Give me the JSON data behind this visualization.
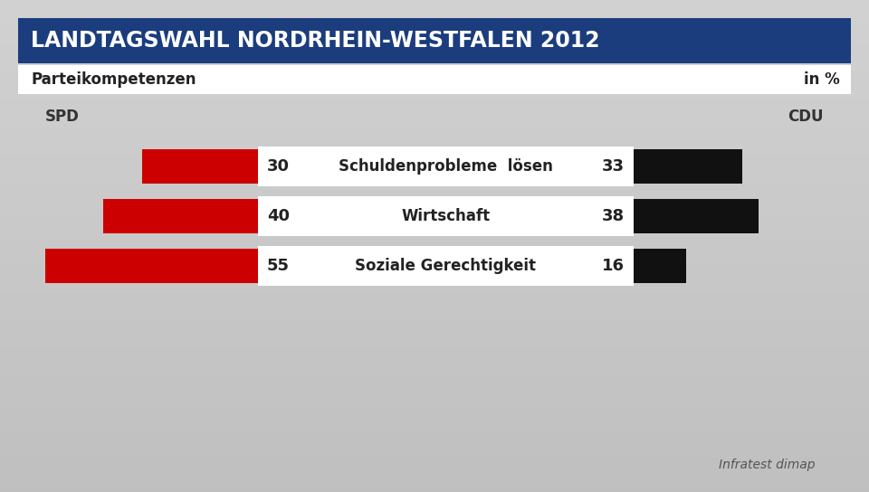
{
  "title": "LANDTAGSWAHL NORDRHEIN-WESTFALEN 2012",
  "subtitle_left": "Parteikompetenzen",
  "subtitle_right": "in %",
  "label_left": "SPD",
  "label_right": "CDU",
  "categories": [
    "Schuldenprobleme  lösen",
    "Wirtschaft",
    "Soziale Gerechtigkeit"
  ],
  "spd_values": [
    30,
    40,
    55
  ],
  "cdu_values": [
    33,
    38,
    16
  ],
  "spd_color": "#cc0000",
  "cdu_color": "#111111",
  "title_bg_color": "#1b3d7d",
  "title_text_color": "#ffffff",
  "source_text": "Infratest dimap",
  "bg_light": "#d4d4d4",
  "bg_dark": "#bebebe",
  "white": "#ffffff"
}
